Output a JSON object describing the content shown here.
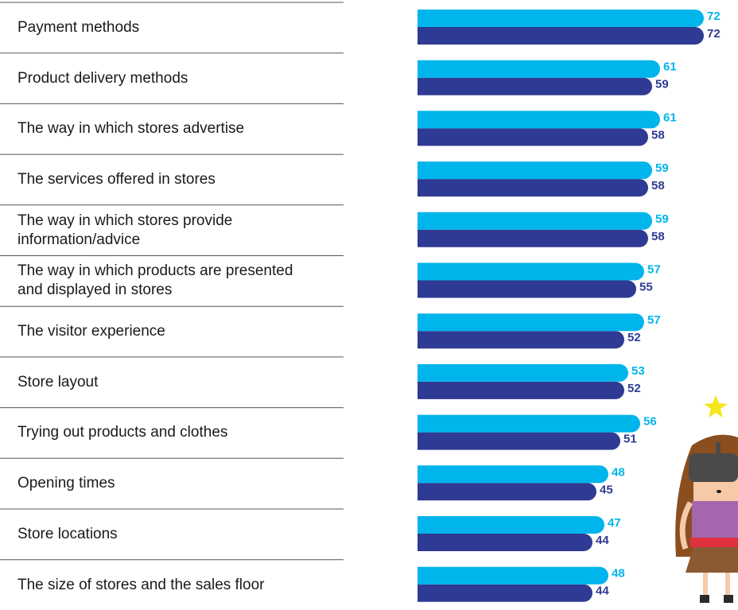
{
  "chart_data": {
    "type": "bar",
    "orientation": "horizontal",
    "categories": [
      "Payment methods",
      "Product delivery methods",
      "The way in which stores advertise",
      "The services offered in stores",
      "The way in which stores provide\ninformation/advice",
      "The way in which products are presented\nand displayed in stores",
      "The visitor experience",
      "Store layout",
      "Trying out products and clothes",
      "Opening times",
      "Store locations",
      "The size of stores and the sales floor"
    ],
    "series": [
      {
        "color": "#00b4ec",
        "values": [
          72,
          61,
          61,
          59,
          59,
          57,
          57,
          53,
          56,
          48,
          47,
          48
        ]
      },
      {
        "color": "#2e3a93",
        "values": [
          72,
          59,
          58,
          58,
          58,
          55,
          52,
          52,
          51,
          45,
          44,
          44
        ]
      }
    ]
  }
}
